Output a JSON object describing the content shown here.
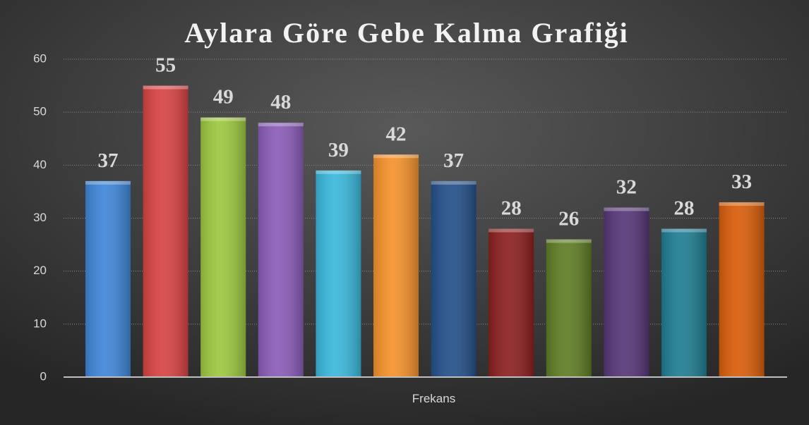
{
  "chart_data": {
    "type": "bar",
    "title": "Aylara Göre Gebe Kalma Grafiği",
    "categories": [
      "Frekans"
    ],
    "series": [
      {
        "color": "#3f86d8",
        "values": [
          37
        ]
      },
      {
        "color": "#d84343",
        "values": [
          55
        ]
      },
      {
        "color": "#9dc83f",
        "values": [
          49
        ]
      },
      {
        "color": "#8a5cb8",
        "values": [
          48
        ]
      },
      {
        "color": "#3ab8dc",
        "values": [
          39
        ]
      },
      {
        "color": "#f5922b",
        "values": [
          42
        ]
      },
      {
        "color": "#24508a",
        "values": [
          37
        ]
      },
      {
        "color": "#8c1f1f",
        "values": [
          28
        ]
      },
      {
        "color": "#5e7d24",
        "values": [
          26
        ]
      },
      {
        "color": "#553678",
        "values": [
          32
        ]
      },
      {
        "color": "#1f7d92",
        "values": [
          28
        ]
      },
      {
        "color": "#d95d0a",
        "values": [
          33
        ]
      }
    ],
    "ylim": [
      0,
      60
    ],
    "yticks": [
      0,
      10,
      20,
      30,
      40,
      50,
      60
    ],
    "grid": true
  }
}
